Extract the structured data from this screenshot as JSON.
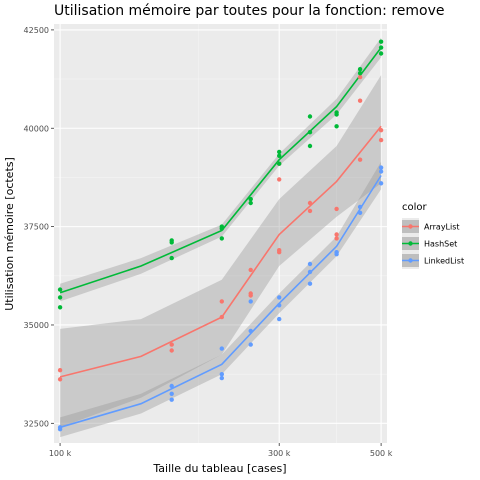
{
  "chart_data": {
    "type": "scatter",
    "title": "Utilisation mémoire par toutes pour la fonction: remove",
    "xlabel": "Taille du tableau [cases]",
    "ylabel": "Utilisation mémoire [octets]",
    "x_scale": "log10",
    "xlim": [
      97000,
      515000
    ],
    "ylim": [
      32000,
      42650
    ],
    "x_ticks": [
      100000,
      300000,
      500000
    ],
    "x_tick_labels": [
      "100 k",
      "300 k",
      "500 k"
    ],
    "y_ticks": [
      32500,
      35000,
      37500,
      40000,
      42500
    ],
    "y_tick_labels": [
      "32500",
      "35000",
      "37500",
      "40000",
      "42500"
    ],
    "grid": true,
    "legend": {
      "title": "color",
      "position": "right"
    },
    "smooth": "loess with confidence band",
    "series": [
      {
        "name": "ArrayList",
        "color": "#f8766d",
        "points": [
          [
            100000,
            33850
          ],
          [
            100000,
            33620
          ],
          [
            175000,
            34500
          ],
          [
            175000,
            34350
          ],
          [
            225000,
            35600
          ],
          [
            225000,
            35200
          ],
          [
            260000,
            36400
          ],
          [
            260000,
            35800
          ],
          [
            260000,
            35750
          ],
          [
            300000,
            36900
          ],
          [
            300000,
            36850
          ],
          [
            300000,
            38700
          ],
          [
            300000,
            39100
          ],
          [
            350000,
            38100
          ],
          [
            350000,
            37900
          ],
          [
            400000,
            37950
          ],
          [
            400000,
            37300
          ],
          [
            400000,
            37200
          ],
          [
            450000,
            40700
          ],
          [
            450000,
            39200
          ],
          [
            450000,
            41300
          ],
          [
            500000,
            39950
          ],
          [
            500000,
            39700
          ]
        ],
        "fit": [
          [
            100000,
            33680
          ],
          [
            150000,
            34200
          ],
          [
            225000,
            35200
          ],
          [
            300000,
            37300
          ],
          [
            400000,
            38650
          ],
          [
            500000,
            40050
          ]
        ],
        "band_lower": [
          [
            100000,
            32400
          ],
          [
            150000,
            33150
          ],
          [
            225000,
            34250
          ],
          [
            300000,
            36500
          ],
          [
            400000,
            37750
          ],
          [
            500000,
            38600
          ]
        ],
        "band_upper": [
          [
            100000,
            34900
          ],
          [
            150000,
            35150
          ],
          [
            225000,
            36150
          ],
          [
            300000,
            38200
          ],
          [
            400000,
            39550
          ],
          [
            500000,
            41350
          ]
        ]
      },
      {
        "name": "HashSet",
        "color": "#00ba38",
        "points": [
          [
            100000,
            35900
          ],
          [
            100000,
            35700
          ],
          [
            100000,
            35450
          ],
          [
            175000,
            37150
          ],
          [
            175000,
            37100
          ],
          [
            175000,
            36700
          ],
          [
            225000,
            37500
          ],
          [
            225000,
            37450
          ],
          [
            225000,
            37200
          ],
          [
            260000,
            38200
          ],
          [
            260000,
            38100
          ],
          [
            300000,
            39400
          ],
          [
            300000,
            39300
          ],
          [
            300000,
            39100
          ],
          [
            350000,
            40300
          ],
          [
            350000,
            39900
          ],
          [
            350000,
            39550
          ],
          [
            400000,
            40400
          ],
          [
            400000,
            40350
          ],
          [
            400000,
            40050
          ],
          [
            450000,
            41500
          ],
          [
            450000,
            41400
          ],
          [
            500000,
            42200
          ],
          [
            500000,
            42050
          ],
          [
            500000,
            41900
          ]
        ],
        "fit": [
          [
            100000,
            35820
          ],
          [
            150000,
            36500
          ],
          [
            225000,
            37400
          ],
          [
            300000,
            39200
          ],
          [
            400000,
            40550
          ],
          [
            500000,
            42050
          ]
        ],
        "band_lower": [
          [
            100000,
            35600
          ],
          [
            150000,
            36300
          ],
          [
            225000,
            37250
          ],
          [
            300000,
            39050
          ],
          [
            400000,
            40350
          ],
          [
            500000,
            41800
          ]
        ],
        "band_upper": [
          [
            100000,
            36050
          ],
          [
            150000,
            36700
          ],
          [
            225000,
            37550
          ],
          [
            300000,
            39350
          ],
          [
            400000,
            40750
          ],
          [
            500000,
            42300
          ]
        ]
      },
      {
        "name": "LinkedList",
        "color": "#619cff",
        "points": [
          [
            100000,
            32400
          ],
          [
            100000,
            32350
          ],
          [
            175000,
            33450
          ],
          [
            175000,
            33250
          ],
          [
            175000,
            33100
          ],
          [
            225000,
            34400
          ],
          [
            225000,
            33750
          ],
          [
            225000,
            33650
          ],
          [
            260000,
            35600
          ],
          [
            260000,
            34850
          ],
          [
            260000,
            34500
          ],
          [
            300000,
            35700
          ],
          [
            300000,
            35500
          ],
          [
            300000,
            35150
          ],
          [
            350000,
            36550
          ],
          [
            350000,
            36350
          ],
          [
            350000,
            36050
          ],
          [
            400000,
            36850
          ],
          [
            400000,
            36800
          ],
          [
            450000,
            38000
          ],
          [
            450000,
            37850
          ],
          [
            500000,
            39000
          ],
          [
            500000,
            38900
          ],
          [
            500000,
            38600
          ]
        ],
        "fit": [
          [
            100000,
            32400
          ],
          [
            150000,
            33000
          ],
          [
            225000,
            34000
          ],
          [
            300000,
            35550
          ],
          [
            400000,
            37000
          ],
          [
            500000,
            38800
          ]
        ],
        "band_lower": [
          [
            100000,
            32150
          ],
          [
            150000,
            32750
          ],
          [
            225000,
            33750
          ],
          [
            300000,
            35300
          ],
          [
            400000,
            36750
          ],
          [
            500000,
            38450
          ]
        ],
        "band_upper": [
          [
            100000,
            32650
          ],
          [
            150000,
            33250
          ],
          [
            225000,
            34250
          ],
          [
            300000,
            35800
          ],
          [
            400000,
            37250
          ],
          [
            500000,
            39150
          ]
        ]
      }
    ]
  }
}
